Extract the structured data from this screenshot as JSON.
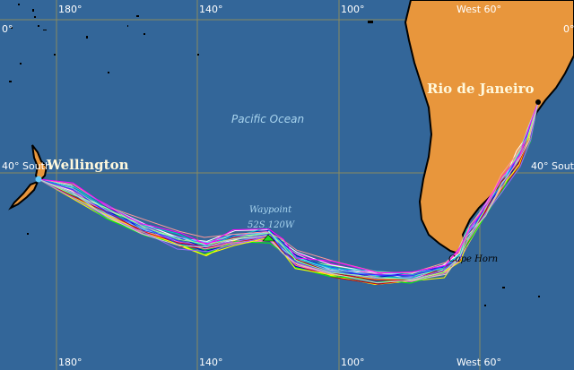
{
  "map": {
    "grid_labels_top": [
      "180°",
      "140°",
      "100°",
      "West 60°"
    ],
    "grid_labels_bottom": [
      "180°",
      "140°",
      "100°",
      "West 60°"
    ],
    "equator_left": "0°",
    "equator_right": "0°",
    "lat40_left": "40° South",
    "lat40_right": "40° South",
    "start_city": "Wellington",
    "end_city": "Rio de Janeiro",
    "ocean_label": "Pacific Ocean",
    "waypoint_label": "Waypoint",
    "waypoint_coords": "52S 120W",
    "cape_label": "Cape Horn"
  },
  "colors": {
    "ocean": "#336699",
    "land": "#e8963c",
    "grid": "#8a8a60",
    "waypoint_marker": "#22dd22",
    "routes": [
      "#ffffff",
      "#00ff00",
      "#0000cc",
      "#ff66cc",
      "#66ccff",
      "#ffff00",
      "#cc0000",
      "#9966ff",
      "#00cccc",
      "#ff9999",
      "#3333ff",
      "#99ff99",
      "#ff00ff",
      "#cccccc"
    ]
  }
}
